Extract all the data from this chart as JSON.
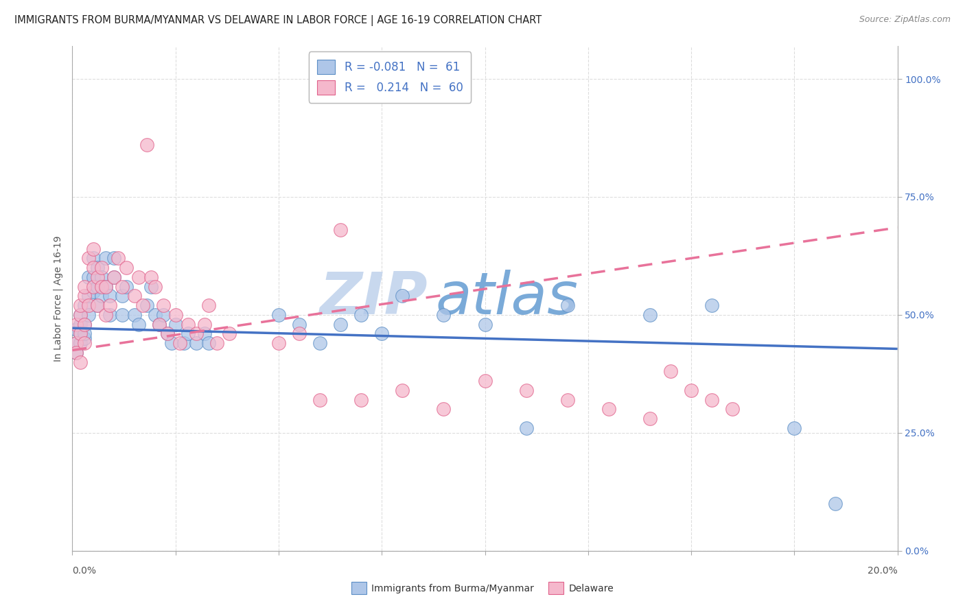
{
  "title": "IMMIGRANTS FROM BURMA/MYANMAR VS DELAWARE IN LABOR FORCE | AGE 16-19 CORRELATION CHART",
  "source": "Source: ZipAtlas.com",
  "ylabel": "In Labor Force | Age 16-19",
  "right_yticks": [
    0.0,
    0.25,
    0.5,
    0.75,
    1.0
  ],
  "right_yticklabels": [
    "0.0%",
    "25.0%",
    "50.0%",
    "75.0%",
    "100.0%"
  ],
  "legend_blue_r": "-0.081",
  "legend_blue_n": "61",
  "legend_pink_r": "0.214",
  "legend_pink_n": "60",
  "blue_fill": "#aec6e8",
  "pink_fill": "#f5b8cc",
  "blue_edge": "#5b8ec5",
  "pink_edge": "#e0608a",
  "blue_line": "#4472c4",
  "pink_line": "#e8729a",
  "watermark": "ZIPAtlas",
  "watermark_color_zip": "#c8d8ee",
  "watermark_color_atlas": "#7aaad8",
  "xlim": [
    0.0,
    0.2
  ],
  "ylim": [
    0.0,
    1.07
  ],
  "blue_line_x": [
    0.0,
    0.2
  ],
  "blue_line_y": [
    0.472,
    0.428
  ],
  "pink_line_x": [
    0.0,
    0.2
  ],
  "pink_line_y": [
    0.425,
    0.685
  ],
  "grid_color": "#dddddd",
  "title_fontsize": 10.5,
  "tick_fontsize": 10,
  "blue_x": [
    0.001,
    0.001,
    0.001,
    0.002,
    0.002,
    0.002,
    0.002,
    0.003,
    0.003,
    0.003,
    0.003,
    0.004,
    0.004,
    0.004,
    0.005,
    0.005,
    0.005,
    0.006,
    0.006,
    0.006,
    0.007,
    0.007,
    0.008,
    0.008,
    0.009,
    0.009,
    0.01,
    0.01,
    0.012,
    0.012,
    0.013,
    0.015,
    0.016,
    0.018,
    0.019,
    0.02,
    0.021,
    0.022,
    0.023,
    0.024,
    0.025,
    0.027,
    0.028,
    0.03,
    0.032,
    0.033,
    0.05,
    0.055,
    0.06,
    0.065,
    0.07,
    0.075,
    0.08,
    0.09,
    0.1,
    0.11,
    0.12,
    0.14,
    0.155,
    0.175,
    0.185
  ],
  "blue_y": [
    0.44,
    0.47,
    0.42,
    0.46,
    0.48,
    0.44,
    0.5,
    0.45,
    0.48,
    0.52,
    0.46,
    0.5,
    0.54,
    0.58,
    0.62,
    0.58,
    0.55,
    0.6,
    0.56,
    0.52,
    0.58,
    0.54,
    0.62,
    0.56,
    0.5,
    0.54,
    0.58,
    0.62,
    0.5,
    0.54,
    0.56,
    0.5,
    0.48,
    0.52,
    0.56,
    0.5,
    0.48,
    0.5,
    0.46,
    0.44,
    0.48,
    0.44,
    0.46,
    0.44,
    0.46,
    0.44,
    0.5,
    0.48,
    0.44,
    0.48,
    0.5,
    0.46,
    0.54,
    0.5,
    0.48,
    0.26,
    0.52,
    0.5,
    0.52,
    0.26,
    0.1
  ],
  "pink_x": [
    0.001,
    0.001,
    0.001,
    0.002,
    0.002,
    0.002,
    0.002,
    0.003,
    0.003,
    0.003,
    0.003,
    0.004,
    0.004,
    0.005,
    0.005,
    0.005,
    0.006,
    0.006,
    0.007,
    0.007,
    0.008,
    0.008,
    0.009,
    0.01,
    0.011,
    0.012,
    0.013,
    0.015,
    0.016,
    0.017,
    0.018,
    0.019,
    0.02,
    0.021,
    0.022,
    0.023,
    0.025,
    0.026,
    0.028,
    0.03,
    0.032,
    0.033,
    0.035,
    0.038,
    0.05,
    0.055,
    0.06,
    0.065,
    0.07,
    0.08,
    0.09,
    0.1,
    0.11,
    0.12,
    0.13,
    0.14,
    0.145,
    0.15,
    0.155,
    0.16
  ],
  "pink_y": [
    0.44,
    0.48,
    0.42,
    0.46,
    0.5,
    0.52,
    0.4,
    0.48,
    0.54,
    0.56,
    0.44,
    0.52,
    0.62,
    0.6,
    0.64,
    0.56,
    0.58,
    0.52,
    0.6,
    0.56,
    0.5,
    0.56,
    0.52,
    0.58,
    0.62,
    0.56,
    0.6,
    0.54,
    0.58,
    0.52,
    0.86,
    0.58,
    0.56,
    0.48,
    0.52,
    0.46,
    0.5,
    0.44,
    0.48,
    0.46,
    0.48,
    0.52,
    0.44,
    0.46,
    0.44,
    0.46,
    0.32,
    0.68,
    0.32,
    0.34,
    0.3,
    0.36,
    0.34,
    0.32,
    0.3,
    0.28,
    0.38,
    0.34,
    0.32,
    0.3
  ]
}
